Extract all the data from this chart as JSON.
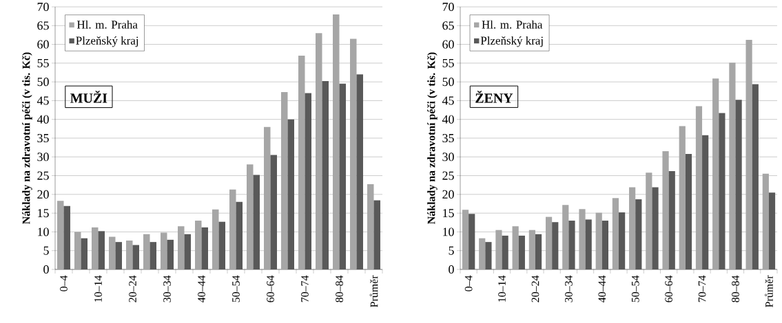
{
  "chart_data": [
    {
      "type": "bar",
      "title": "MUŽI",
      "ylabel": "Náklady na zdravotní péči (v tis. Kč)",
      "categories": [
        "0–4",
        null,
        "10–14",
        null,
        "20–24",
        null,
        "30–34",
        null,
        "40–44",
        null,
        "50–54",
        null,
        "60–64",
        null,
        "70–74",
        null,
        "80–84",
        null,
        "Průměr"
      ],
      "series": [
        {
          "name": "Hl. m. Praha",
          "color": "#a6a6a6",
          "values": [
            18.3,
            10,
            11.2,
            8.7,
            7.7,
            9.4,
            9.8,
            11.5,
            13,
            16,
            21.3,
            28,
            38,
            47.3,
            57,
            63,
            68,
            61.5,
            22.7
          ]
        },
        {
          "name": "Plzeňský kraj",
          "color": "#595959",
          "values": [
            16.9,
            8.3,
            10.2,
            7.3,
            6.5,
            7.3,
            7.9,
            9.4,
            11.2,
            12.7,
            18,
            25.2,
            30.5,
            40,
            47,
            50.2,
            49.5,
            52,
            18.4
          ]
        }
      ],
      "ylim": [
        0,
        70
      ],
      "yticks": [
        0,
        5,
        10,
        15,
        20,
        25,
        30,
        35,
        40,
        45,
        50,
        55,
        60,
        65,
        70
      ],
      "grid": "y",
      "legend": "top left"
    },
    {
      "type": "bar",
      "title": "ŽENY",
      "ylabel": "Náklady na zdravotní péči (v tis. Kč)",
      "categories": [
        "0–4",
        null,
        "10–14",
        null,
        "20–24",
        null,
        "30–34",
        null,
        "40–44",
        null,
        "50–54",
        null,
        "60–64",
        null,
        "70–74",
        null,
        "80–84",
        null,
        "Průměr"
      ],
      "series": [
        {
          "name": "Hl. m. Praha",
          "color": "#a6a6a6",
          "values": [
            15.9,
            8.3,
            10.5,
            11.5,
            10.5,
            14,
            17.2,
            16.1,
            15.1,
            19,
            21.9,
            25.8,
            31.5,
            38.2,
            43.5,
            50.9,
            55.1,
            61.2,
            25.5
          ]
        },
        {
          "name": "Plzeňský kraj",
          "color": "#595959",
          "values": [
            14.8,
            7.3,
            9,
            9,
            9.4,
            12.6,
            13,
            13.3,
            13,
            15.2,
            18.7,
            21.9,
            26.2,
            30.8,
            35.8,
            41.7,
            45.2,
            49.4,
            20.5
          ]
        }
      ],
      "ylim": [
        0,
        70
      ],
      "yticks": [
        0,
        5,
        10,
        15,
        20,
        25,
        30,
        35,
        40,
        45,
        50,
        55,
        60,
        65,
        70
      ],
      "grid": "y",
      "legend": "top left"
    }
  ]
}
